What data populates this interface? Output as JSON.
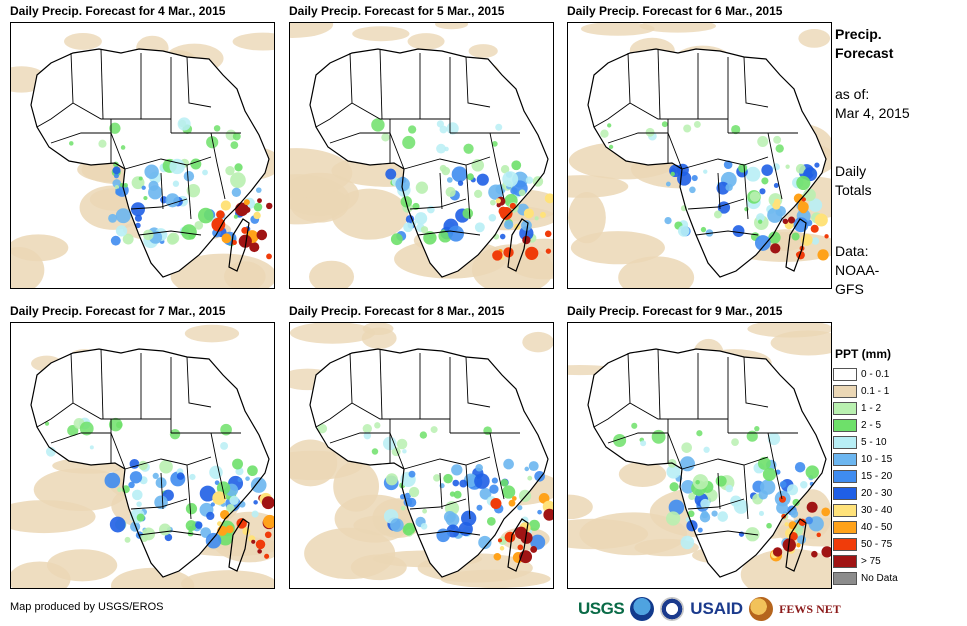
{
  "panels": [
    {
      "title": "Daily Precip. Forecast for 4 Mar., 2015"
    },
    {
      "title": "Daily Precip. Forecast for 5 Mar., 2015"
    },
    {
      "title": "Daily Precip. Forecast for 6 Mar., 2015"
    },
    {
      "title": "Daily Precip. Forecast for 7 Mar., 2015"
    },
    {
      "title": "Daily Precip. Forecast for 8 Mar., 2015"
    },
    {
      "title": "Daily Precip. Forecast for 9 Mar., 2015"
    }
  ],
  "sidebar": {
    "heading_line1": "Precip.",
    "heading_line2": "Forecast",
    "asof_label": "as of:",
    "asof_date": "Mar 4, 2015",
    "totals_line1": "Daily",
    "totals_line2": "Totals",
    "data_line1": "Data:",
    "data_line2": "NOAA-",
    "data_line3": "GFS"
  },
  "legend": {
    "title": "PPT (mm)",
    "items": [
      {
        "label": "0 - 0.1",
        "color": "#ffffff"
      },
      {
        "label": "0.1 - 1",
        "color": "#ebd7b5"
      },
      {
        "label": "1 - 2",
        "color": "#b9f0b0"
      },
      {
        "label": "2 - 5",
        "color": "#6ee06a"
      },
      {
        "label": "5 - 10",
        "color": "#b8eef5"
      },
      {
        "label": "10 - 15",
        "color": "#6cb6f0"
      },
      {
        "label": "15 - 20",
        "color": "#3f8cf0"
      },
      {
        "label": "20 - 30",
        "color": "#1f5fe6"
      },
      {
        "label": "30 - 40",
        "color": "#ffe27a"
      },
      {
        "label": "40 - 50",
        "color": "#ffa21a"
      },
      {
        "label": "50 - 75",
        "color": "#f03c0a"
      },
      {
        "label": "> 75",
        "color": "#a01414"
      },
      {
        "label": "No Data",
        "color": "#8c8c8c"
      }
    ]
  },
  "footer": {
    "credit": "Map produced by USGS/EROS",
    "logo_usgs": "USGS",
    "logo_usaid": "USAID",
    "logo_fews": "FEWS NET"
  }
}
